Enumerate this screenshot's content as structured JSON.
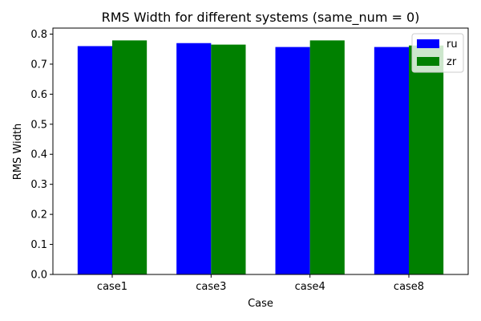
{
  "chart_data": {
    "type": "bar",
    "title": "RMS Width for different systems (same_num = 0)",
    "xlabel": "Case",
    "ylabel": "RMS Width",
    "categories": [
      "case1",
      "case3",
      "case4",
      "case8"
    ],
    "series": [
      {
        "name": "ru",
        "color": "#0000ff",
        "values": [
          0.76,
          0.77,
          0.757,
          0.757
        ]
      },
      {
        "name": "zr",
        "color": "#008000",
        "values": [
          0.779,
          0.765,
          0.779,
          0.762
        ]
      }
    ],
    "ylim": [
      0,
      0.82
    ],
    "yticks": [
      "0.0",
      "0.1",
      "0.2",
      "0.3",
      "0.4",
      "0.5",
      "0.6",
      "0.7",
      "0.8"
    ],
    "grid": false,
    "legend_position": "top-right"
  }
}
